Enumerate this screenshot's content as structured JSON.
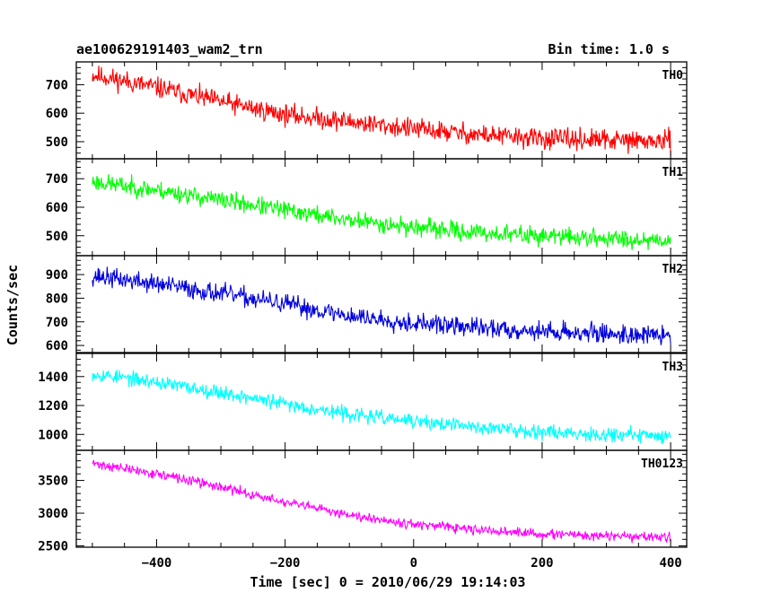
{
  "header": {
    "left_title": "ae100629191403_wam2_trn",
    "right_title": "Bin time: 1.0 s"
  },
  "chart_data": {
    "type": "line",
    "xlabel": "Time [sec] 0 = 2010/06/29 19:14:03",
    "ylabel": "Counts/sec",
    "xlim": [
      -525,
      425
    ],
    "xticks": [
      -400,
      -200,
      0,
      200,
      400
    ],
    "xtick_labels": [
      "−400",
      "−200",
      "0",
      "200",
      "400"
    ],
    "x_range": [
      -500,
      400
    ],
    "panels": [
      {
        "name": "TH0",
        "color": "#ff0000",
        "ylim": [
          440,
          780
        ],
        "yticks": [
          500,
          600,
          700
        ],
        "ytick_labels": [
          "500",
          "600",
          "700"
        ],
        "trend": [
          [
            -500,
            735
          ],
          [
            -400,
            690
          ],
          [
            -300,
            640
          ],
          [
            -200,
            595
          ],
          [
            -100,
            570
          ],
          [
            0,
            545
          ],
          [
            100,
            525
          ],
          [
            200,
            510
          ],
          [
            300,
            505
          ],
          [
            400,
            500
          ]
        ],
        "noise": 40,
        "seed": 11
      },
      {
        "name": "TH1",
        "color": "#00ff00",
        "ylim": [
          430,
          770
        ],
        "yticks": [
          500,
          600,
          700
        ],
        "ytick_labels": [
          "500",
          "600",
          "700"
        ],
        "trend": [
          [
            -500,
            690
          ],
          [
            -400,
            660
          ],
          [
            -300,
            625
          ],
          [
            -200,
            590
          ],
          [
            -100,
            555
          ],
          [
            0,
            530
          ],
          [
            100,
            510
          ],
          [
            200,
            500
          ],
          [
            300,
            490
          ],
          [
            400,
            485
          ]
        ],
        "noise": 35,
        "seed": 23
      },
      {
        "name": "TH2",
        "color": "#0000dd",
        "ylim": [
          570,
          980
        ],
        "yticks": [
          600,
          700,
          800,
          900
        ],
        "ytick_labels": [
          "600",
          "700",
          "800",
          "900"
        ],
        "trend": [
          [
            -500,
            895
          ],
          [
            -400,
            860
          ],
          [
            -300,
            820
          ],
          [
            -200,
            775
          ],
          [
            -100,
            725
          ],
          [
            0,
            695
          ],
          [
            100,
            675
          ],
          [
            200,
            660
          ],
          [
            300,
            650
          ],
          [
            400,
            640
          ]
        ],
        "noise": 45,
        "seed": 37
      },
      {
        "name": "TH3",
        "color": "#00ffff",
        "ylim": [
          890,
          1560
        ],
        "yticks": [
          1000,
          1200,
          1400
        ],
        "ytick_labels": [
          "1000",
          "1200",
          "1400"
        ],
        "trend": [
          [
            -500,
            1420
          ],
          [
            -400,
            1360
          ],
          [
            -300,
            1290
          ],
          [
            -200,
            1210
          ],
          [
            -100,
            1140
          ],
          [
            0,
            1090
          ],
          [
            100,
            1050
          ],
          [
            200,
            1020
          ],
          [
            300,
            1000
          ],
          [
            400,
            990
          ]
        ],
        "noise": 55,
        "seed": 53
      },
      {
        "name": "TH0123",
        "color": "#ff00ff",
        "ylim": [
          2480,
          3960
        ],
        "yticks": [
          2500,
          3000,
          3500
        ],
        "ytick_labels": [
          "2500",
          "3000",
          "3500"
        ],
        "trend": [
          [
            -500,
            3760
          ],
          [
            -400,
            3600
          ],
          [
            -300,
            3400
          ],
          [
            -200,
            3160
          ],
          [
            -100,
            2980
          ],
          [
            0,
            2830
          ],
          [
            100,
            2740
          ],
          [
            200,
            2680
          ],
          [
            300,
            2650
          ],
          [
            400,
            2630
          ]
        ],
        "noise": 80,
        "seed": 71
      }
    ]
  }
}
